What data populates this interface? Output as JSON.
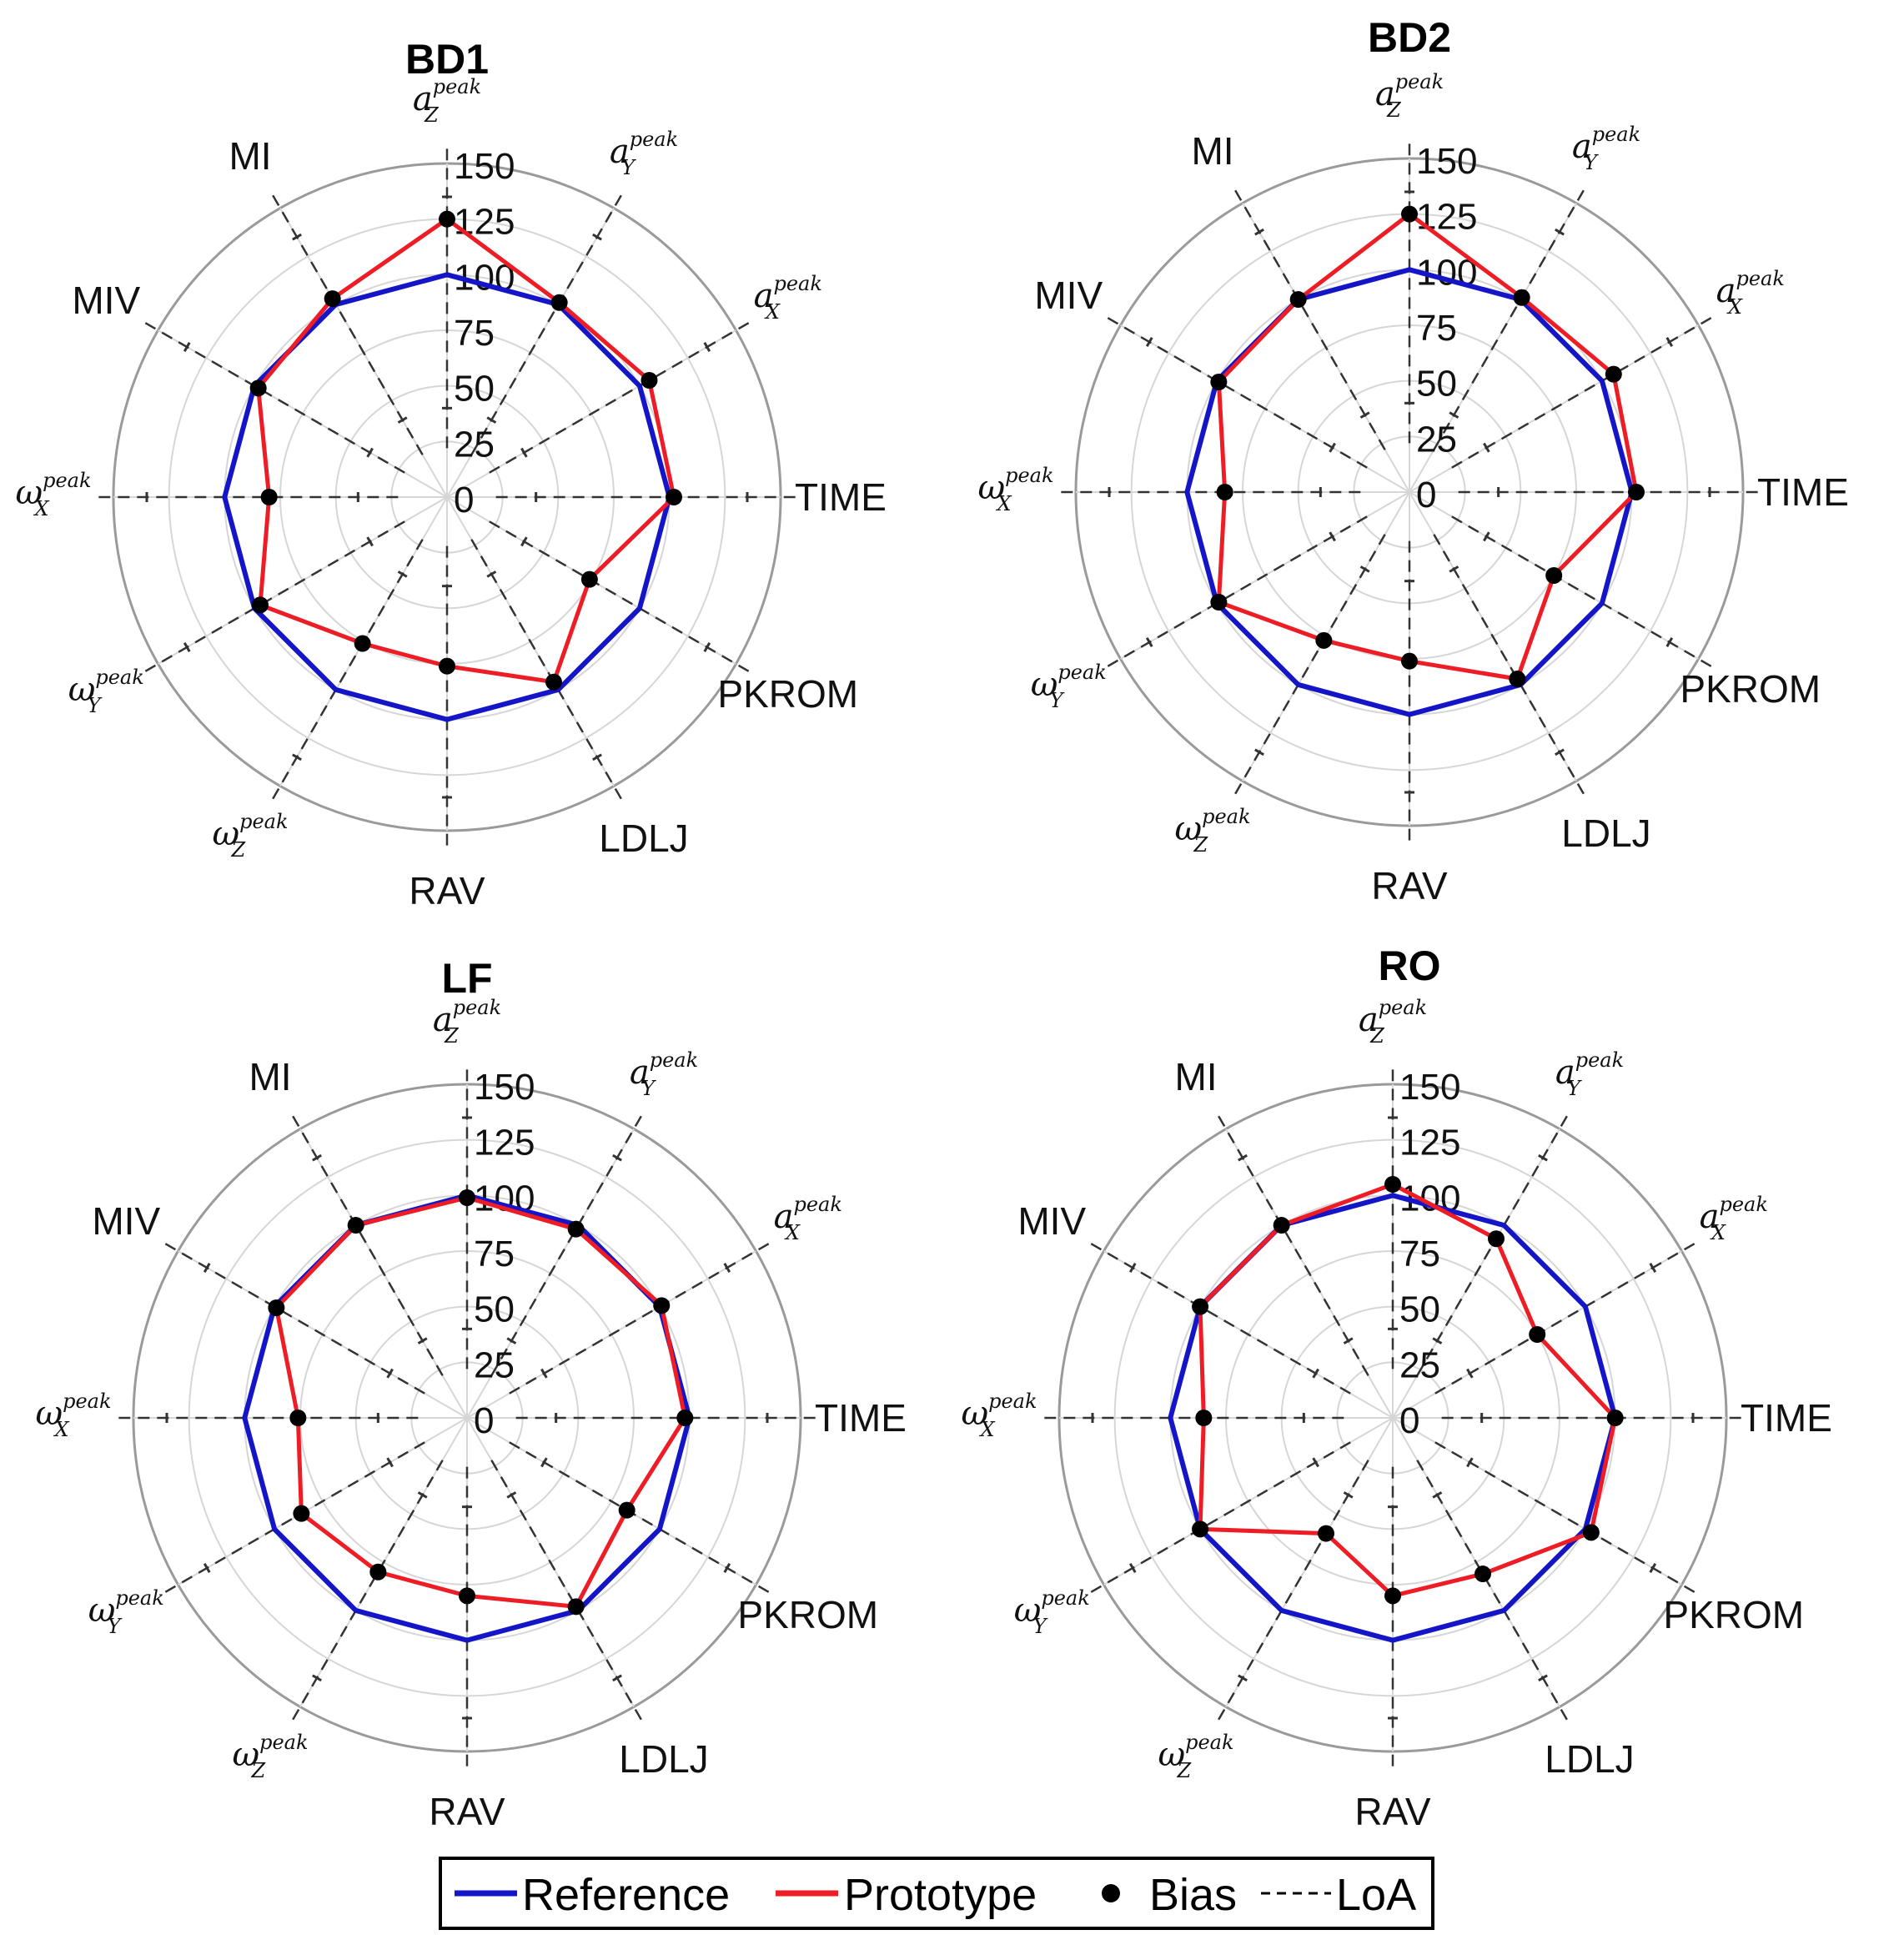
{
  "chart_data": {
    "type": "radar",
    "radial_range": [
      0,
      150
    ],
    "radial_ticks": [
      "0",
      "25",
      "50",
      "75",
      "100",
      "125",
      "150"
    ],
    "grid": true,
    "axes": [
      {
        "label": "",
        "sym": "a",
        "sub": "Z",
        "sup": "peak"
      },
      {
        "label": "",
        "sym": "a",
        "sub": "Y",
        "sup": "peak"
      },
      {
        "label": "",
        "sym": "a",
        "sub": "X",
        "sup": "peak"
      },
      {
        "label": "TIME"
      },
      {
        "label": "PKROM"
      },
      {
        "label": "LDLJ"
      },
      {
        "label": "RAV"
      },
      {
        "label": "",
        "sym": "ω",
        "sub": "Z",
        "sup": "peak"
      },
      {
        "label": "",
        "sym": "ω",
        "sub": "Y",
        "sup": "peak"
      },
      {
        "label": "",
        "sym": "ω",
        "sub": "X",
        "sup": "peak"
      },
      {
        "label": "MIV"
      },
      {
        "label": "MI"
      }
    ],
    "panels": [
      {
        "title": "BD1",
        "reference": [
          100,
          100,
          100,
          100,
          100,
          100,
          100,
          100,
          100,
          100,
          100,
          100
        ],
        "prototype": [
          125,
          101,
          105,
          102,
          74,
          96,
          76,
          76,
          97,
          80,
          98,
          103
        ],
        "bias": [
          125,
          101,
          105,
          102,
          74,
          96,
          76,
          76,
          97,
          80,
          98,
          103
        ]
      },
      {
        "title": "BD2",
        "reference": [
          100,
          100,
          100,
          100,
          100,
          100,
          100,
          100,
          100,
          100,
          100,
          100
        ],
        "prototype": [
          125,
          101,
          106,
          102,
          75,
          97,
          76,
          77,
          99,
          83,
          99,
          100
        ],
        "bias": [
          125,
          101,
          106,
          102,
          75,
          97,
          76,
          77,
          99,
          83,
          99,
          100
        ]
      },
      {
        "title": "LF",
        "reference": [
          100,
          100,
          100,
          100,
          100,
          100,
          100,
          100,
          100,
          100,
          100,
          100
        ],
        "prototype": [
          99,
          98,
          101,
          98,
          83,
          98,
          80,
          80,
          86,
          76,
          99,
          100
        ],
        "bias": [
          99,
          98,
          101,
          98,
          83,
          98,
          80,
          80,
          86,
          76,
          99,
          100
        ]
      },
      {
        "title": "RO",
        "reference": [
          100,
          100,
          100,
          100,
          100,
          100,
          100,
          100,
          100,
          100,
          100,
          100
        ],
        "prototype": [
          105,
          93,
          75,
          100,
          103,
          81,
          80,
          60,
          100,
          85,
          100,
          100
        ],
        "bias": [
          105,
          93,
          75,
          100,
          103,
          81,
          80,
          60,
          100,
          85,
          100,
          100
        ]
      }
    ],
    "legend": {
      "position": "bottom-center",
      "entries": [
        {
          "label": "Reference",
          "kind": "line",
          "color": "#1515c8"
        },
        {
          "label": "Prototype",
          "kind": "line",
          "color": "#ee1c24"
        },
        {
          "label": "Bias",
          "kind": "dot",
          "color": "#000000"
        },
        {
          "label": "LoA",
          "kind": "dashed",
          "color": "#000000"
        }
      ]
    }
  }
}
